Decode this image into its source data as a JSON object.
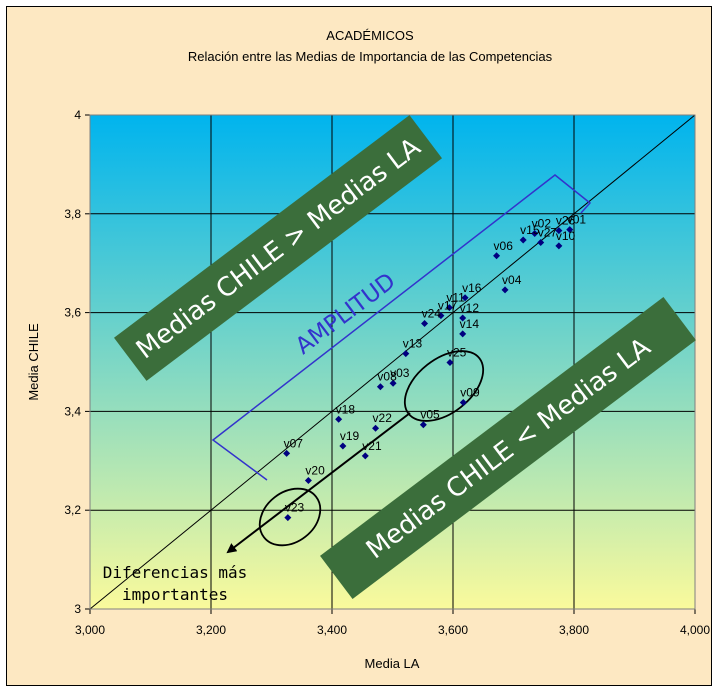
{
  "chart_data": {
    "type": "scatter",
    "title": "ACADÉMICOS",
    "subtitle": "Relación entre las Medias de Importancia de las Competencias",
    "xlabel": "Media LA",
    "ylabel": "Media CHILE",
    "xlim": [
      3.0,
      4.0
    ],
    "ylim": [
      3.0,
      4.0
    ],
    "x_ticks": [
      "3,000",
      "3,200",
      "3,400",
      "3,600",
      "3,800",
      "4,000"
    ],
    "y_ticks": [
      "3",
      "3,2",
      "3,4",
      "3,6",
      "3,8",
      "4"
    ],
    "grid": true,
    "reference_line": "y = x",
    "marker_color": "#000080",
    "plot_gradient": [
      "#00b4ee",
      "#fafa9c"
    ],
    "points": [
      {
        "label": "v01",
        "x": 3.793,
        "y": 3.768
      },
      {
        "label": "v02",
        "x": 3.735,
        "y": 3.76
      },
      {
        "label": "v26",
        "x": 3.775,
        "y": 3.766
      },
      {
        "label": "v10",
        "x": 3.775,
        "y": 3.735
      },
      {
        "label": "v15",
        "x": 3.716,
        "y": 3.747
      },
      {
        "label": "v27",
        "x": 3.745,
        "y": 3.742
      },
      {
        "label": "v04",
        "x": 3.686,
        "y": 3.646
      },
      {
        "label": "v06",
        "x": 3.672,
        "y": 3.715
      },
      {
        "label": "v16",
        "x": 3.62,
        "y": 3.63
      },
      {
        "label": "v11",
        "x": 3.594,
        "y": 3.61
      },
      {
        "label": "v17",
        "x": 3.58,
        "y": 3.594
      },
      {
        "label": "v24",
        "x": 3.553,
        "y": 3.578
      },
      {
        "label": "v12",
        "x": 3.616,
        "y": 3.589
      },
      {
        "label": "v13",
        "x": 3.522,
        "y": 3.517
      },
      {
        "label": "v14",
        "x": 3.616,
        "y": 3.557
      },
      {
        "label": "v25",
        "x": 3.595,
        "y": 3.499
      },
      {
        "label": "v03",
        "x": 3.501,
        "y": 3.457
      },
      {
        "label": "v08",
        "x": 3.48,
        "y": 3.45
      },
      {
        "label": "v09",
        "x": 3.617,
        "y": 3.418
      },
      {
        "label": "v05",
        "x": 3.551,
        "y": 3.373
      },
      {
        "label": "v18",
        "x": 3.411,
        "y": 3.384
      },
      {
        "label": "v22",
        "x": 3.472,
        "y": 3.366
      },
      {
        "label": "v19",
        "x": 3.418,
        "y": 3.33
      },
      {
        "label": "v21",
        "x": 3.455,
        "y": 3.31
      },
      {
        "label": "v07",
        "x": 3.325,
        "y": 3.315
      },
      {
        "label": "v20",
        "x": 3.361,
        "y": 3.26
      },
      {
        "label": "v23",
        "x": 3.327,
        "y": 3.185
      }
    ],
    "annotations": {
      "upper_band": "Medias CHILE > Medias LA",
      "lower_band": "Medias CHILE < Medias LA",
      "amplitude": "AMPLITUD",
      "note": [
        "Diferencias más",
        "importantes"
      ],
      "band_color": "#3b6e3b",
      "amplitude_color": "#3333cc"
    }
  }
}
